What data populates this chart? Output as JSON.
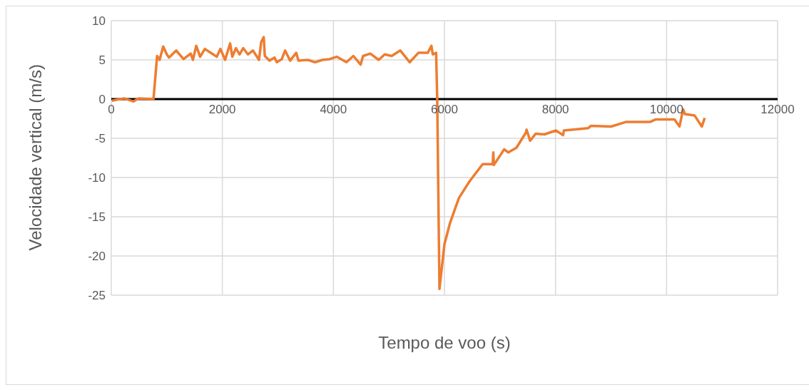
{
  "chart_data": {
    "type": "line",
    "xlabel": "Tempo de voo (s)",
    "ylabel": "Velocidade vertical (m/s)",
    "x": [
      10,
      230,
      400,
      490,
      760,
      825,
      870,
      935,
      1000,
      1040,
      1170,
      1300,
      1430,
      1470,
      1530,
      1600,
      1685,
      1815,
      1900,
      1965,
      2050,
      2140,
      2180,
      2245,
      2310,
      2375,
      2460,
      2550,
      2660,
      2700,
      2745,
      2765,
      2850,
      2940,
      2980,
      3070,
      3130,
      3220,
      3330,
      3370,
      3540,
      3670,
      3800,
      3930,
      4060,
      4235,
      4360,
      4490,
      4535,
      4665,
      4815,
      4925,
      5050,
      5205,
      5375,
      5530,
      5700,
      5765,
      5790,
      5850,
      5870,
      5910,
      6000,
      6100,
      6200,
      6261,
      6450,
      6688,
      6869,
      6880,
      6890,
      7076,
      7150,
      7296,
      7465,
      7480,
      7542,
      7645,
      7800,
      8008,
      8137,
      8150,
      8590,
      8640,
      9000,
      9276,
      9707,
      9800,
      10142,
      10233,
      10298,
      10330,
      10506,
      10636,
      10687
    ],
    "series": [
      {
        "color": "#ed7d31",
        "values": [
          -0.2,
          0.1,
          -0.3,
          0.1,
          0,
          5.5,
          5.0,
          6.7,
          5.7,
          5.3,
          6.2,
          5.1,
          5.8,
          5.0,
          6.8,
          5.4,
          6.4,
          5.8,
          5.4,
          6.4,
          5.0,
          7.1,
          5.4,
          6.5,
          5.7,
          6.5,
          5.7,
          6.2,
          5.0,
          7.3,
          7.9,
          5.5,
          4.9,
          5.3,
          4.7,
          5.1,
          6.2,
          4.9,
          5.9,
          4.9,
          5.0,
          4.7,
          5.0,
          5.1,
          5.4,
          4.7,
          5.5,
          4.4,
          5.5,
          5.8,
          5.0,
          5.7,
          5.5,
          6.2,
          4.7,
          5.9,
          5.9,
          6.8,
          5.7,
          5.9,
          0,
          -24.2,
          -18.5,
          -15.8,
          -13.8,
          -12.6,
          -10.5,
          -8.3,
          -8.3,
          -6.8,
          -8.4,
          -6.4,
          -6.8,
          -6.2,
          -4.3,
          -3.9,
          -5.3,
          -4.4,
          -4.5,
          -4.0,
          -4.6,
          -4.0,
          -3.7,
          -3.4,
          -3.5,
          -2.9,
          -2.9,
          -2.6,
          -2.6,
          -3.5,
          -1.3,
          -1.9,
          -2.1,
          -3.5,
          -2.4
        ]
      }
    ],
    "xlim": [
      0,
      12000
    ],
    "xticks": [
      0,
      2000,
      4000,
      6000,
      8000,
      10000,
      12000
    ],
    "ylim": [
      -25,
      10
    ],
    "yticks": [
      -25,
      -20,
      -15,
      -10,
      -5,
      0,
      5,
      10
    ],
    "grid": true,
    "marker": "none",
    "line_style": "solid"
  }
}
